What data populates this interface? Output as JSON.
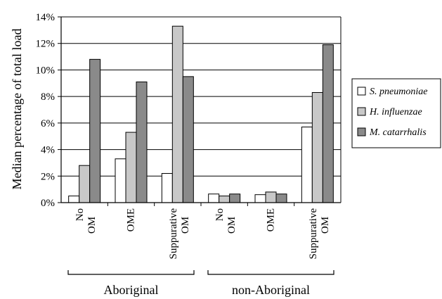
{
  "chart_data": {
    "type": "bar",
    "ylabel": "Median percentage of total load",
    "xlabel": "",
    "ylim": [
      0,
      14
    ],
    "yticks": [
      "0%",
      "2%",
      "4%",
      "6%",
      "8%",
      "10%",
      "12%",
      "14%"
    ],
    "grid": true,
    "legend_position": "right",
    "categories": [
      "No OM",
      "OME",
      "Suppurative OM",
      "No OM",
      "OME",
      "Suppurative OM"
    ],
    "groups": [
      {
        "label": "Aboriginal",
        "categories": [
          0,
          1,
          2
        ]
      },
      {
        "label": "non-Aboriginal",
        "categories": [
          3,
          4,
          5
        ]
      }
    ],
    "series": [
      {
        "name": "S. pneumoniae",
        "color": "#ffffff",
        "values": [
          0.5,
          3.3,
          2.2,
          0.65,
          0.6,
          5.7
        ]
      },
      {
        "name": "H. influenzae",
        "color": "#c8c8c8",
        "values": [
          2.8,
          5.3,
          13.3,
          0.5,
          0.8,
          8.3
        ]
      },
      {
        "name": "M. catarrhalis",
        "color": "#8a8a8a",
        "values": [
          10.8,
          9.1,
          9.5,
          0.65,
          0.65,
          11.9
        ]
      }
    ]
  }
}
